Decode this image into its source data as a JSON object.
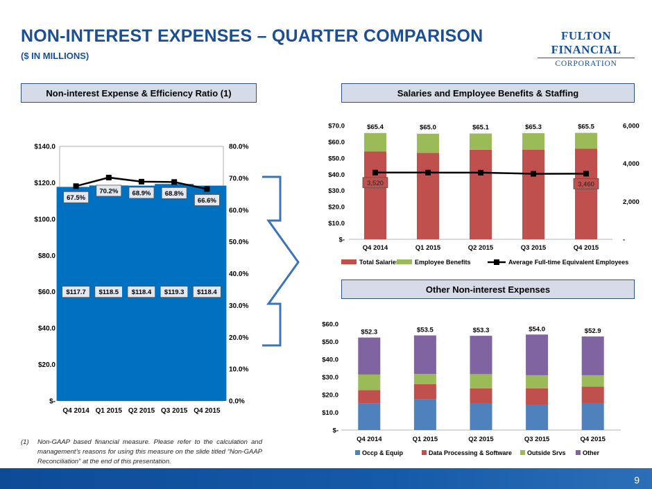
{
  "header": {
    "title": "NON-INTEREST EXPENSES – QUARTER COMPARISON",
    "subtitle": "($ IN MILLIONS)",
    "logo_line1": "FULTON FINANCIAL",
    "logo_line2": "CORPORATION"
  },
  "panels": {
    "left": "Non-interest Expense & Efficiency Ratio (1)",
    "right_top": "Salaries and Employee Benefits & Staffing",
    "right_bottom": "Other Non-interest Expenses"
  },
  "footnote": {
    "number": "(1)",
    "text": "Non-GAAP based financial measure. Please refer to the calculation and management’s reasons for using this measure on the slide titled “Non-GAAP Reconciliation” at the end of this presentation."
  },
  "page_number": "9",
  "colors": {
    "blue_bar": "#0070c0",
    "salaries": "#c0504d",
    "benefits": "#9bbb59",
    "occp": "#4f81bd",
    "dataproc": "#c0504d",
    "outside": "#9bbb59",
    "other": "#8064a2",
    "title": "#1a4e95"
  },
  "chart_data": [
    {
      "type": "bar",
      "title": "Non-interest Expense & Efficiency Ratio (1)",
      "categories": [
        "Q4 2014",
        "Q1 2015",
        "Q2 2015",
        "Q3 2015",
        "Q4 2015"
      ],
      "series": [
        {
          "name": "Non-interest Expense",
          "axis": "left",
          "values": [
            117.7,
            118.5,
            118.4,
            119.3,
            118.4
          ],
          "labels": [
            "$117.7",
            "$118.5",
            "$118.4",
            "$119.3",
            "$118.4"
          ]
        },
        {
          "name": "Efficiency Ratio",
          "axis": "right",
          "type": "line",
          "values": [
            67.5,
            70.2,
            68.9,
            68.8,
            66.6
          ],
          "labels": [
            "67.5%",
            "70.2%",
            "68.9%",
            "68.8%",
            "66.6%"
          ]
        }
      ],
      "ylim": [
        0,
        140
      ],
      "y2lim": [
        0,
        80
      ],
      "yticks": [
        "$-",
        "$20.0",
        "$40.0",
        "$60.0",
        "$80.0",
        "$100.0",
        "$120.0",
        "$140.0"
      ],
      "y2ticks": [
        "0.0%",
        "10.0%",
        "20.0%",
        "30.0%",
        "40.0%",
        "50.0%",
        "60.0%",
        "70.0%",
        "80.0%"
      ]
    },
    {
      "type": "bar",
      "stacked": true,
      "title": "Salaries and Employee Benefits & Staffing",
      "categories": [
        "Q4 2014",
        "Q1 2015",
        "Q2 2015",
        "Q3 2015",
        "Q4 2015"
      ],
      "series": [
        {
          "name": "Total Salaries",
          "axis": "left",
          "values": [
            54.0,
            53.2,
            55.1,
            55.2,
            55.7
          ]
        },
        {
          "name": "Employee Benefits",
          "axis": "left",
          "values": [
            11.4,
            11.8,
            10.0,
            10.1,
            9.8
          ]
        },
        {
          "name": "Average Full-time Equivalent Employees",
          "axis": "right",
          "type": "line",
          "values": [
            3520,
            3520,
            3515,
            3455,
            3460
          ]
        }
      ],
      "totals": [
        "$65.4",
        "$65.0",
        "$65.1",
        "$65.3",
        "$65.5"
      ],
      "fte_labels": {
        "first": "3,520",
        "last": "3,460"
      },
      "ylim": [
        0,
        70
      ],
      "y2lim": [
        0,
        6000
      ],
      "yticks": [
        "$-",
        "$10.0",
        "$20.0",
        "$30.0",
        "$40.0",
        "$50.0",
        "$60.0",
        "$70.0"
      ],
      "y2ticks": [
        "-",
        "2,000",
        "4,000",
        "6,000"
      ]
    },
    {
      "type": "bar",
      "stacked": true,
      "title": "Other Non-interest Expenses",
      "categories": [
        "Q4 2014",
        "Q1 2015",
        "Q2 2015",
        "Q3 2015",
        "Q4 2015"
      ],
      "series": [
        {
          "name": "Occp & Equip",
          "values": [
            15.0,
            17.6,
            15.3,
            14.3,
            15.3
          ]
        },
        {
          "name": "Data Processing & Software",
          "values": [
            7.6,
            8.4,
            8.3,
            9.3,
            9.3
          ]
        },
        {
          "name": "Outside Srvs",
          "values": [
            8.8,
            5.7,
            8.0,
            7.4,
            6.4
          ]
        },
        {
          "name": "Other",
          "values": [
            20.9,
            21.8,
            21.7,
            23.0,
            21.9
          ]
        }
      ],
      "totals": [
        "$52.3",
        "$53.5",
        "$53.3",
        "$54.0",
        "$52.9"
      ],
      "ylim": [
        0,
        60
      ],
      "yticks": [
        "$-",
        "$10.0",
        "$20.0",
        "$30.0",
        "$40.0",
        "$50.0",
        "$60.0"
      ]
    }
  ]
}
